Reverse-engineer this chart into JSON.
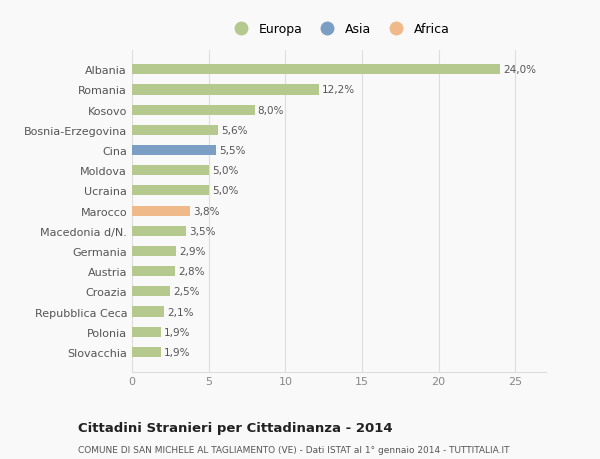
{
  "categories": [
    "Slovacchia",
    "Polonia",
    "Repubblica Ceca",
    "Croazia",
    "Austria",
    "Germania",
    "Macedonia d/N.",
    "Marocco",
    "Ucraina",
    "Moldova",
    "Cina",
    "Bosnia-Erzegovina",
    "Kosovo",
    "Romania",
    "Albania"
  ],
  "values": [
    1.9,
    1.9,
    2.1,
    2.5,
    2.8,
    2.9,
    3.5,
    3.8,
    5.0,
    5.0,
    5.5,
    5.6,
    8.0,
    12.2,
    24.0
  ],
  "labels": [
    "1,9%",
    "1,9%",
    "2,1%",
    "2,5%",
    "2,8%",
    "2,9%",
    "3,5%",
    "3,8%",
    "5,0%",
    "5,0%",
    "5,5%",
    "5,6%",
    "8,0%",
    "12,2%",
    "24,0%"
  ],
  "colors": [
    "#b5c98e",
    "#b5c98e",
    "#b5c98e",
    "#b5c98e",
    "#b5c98e",
    "#b5c98e",
    "#b5c98e",
    "#f0b98a",
    "#b5c98e",
    "#b5c98e",
    "#7b9ec4",
    "#b5c98e",
    "#b5c98e",
    "#b5c98e",
    "#b5c98e"
  ],
  "legend": [
    {
      "label": "Europa",
      "color": "#b5c98e"
    },
    {
      "label": "Asia",
      "color": "#7b9ec4"
    },
    {
      "label": "Africa",
      "color": "#f0b98a"
    }
  ],
  "xlim": [
    0,
    27
  ],
  "xticks": [
    0,
    5,
    10,
    15,
    20,
    25
  ],
  "title": "Cittadini Stranieri per Cittadinanza - 2014",
  "subtitle": "COMUNE DI SAN MICHELE AL TAGLIAMENTO (VE) - Dati ISTAT al 1° gennaio 2014 - TUTTITALIA.IT",
  "bg_color": "#f9f9f9",
  "grid_color": "#dddddd",
  "bar_height": 0.5,
  "label_fontsize": 7.5,
  "tick_fontsize": 8.0,
  "title_fontsize": 9.5,
  "subtitle_fontsize": 6.5
}
